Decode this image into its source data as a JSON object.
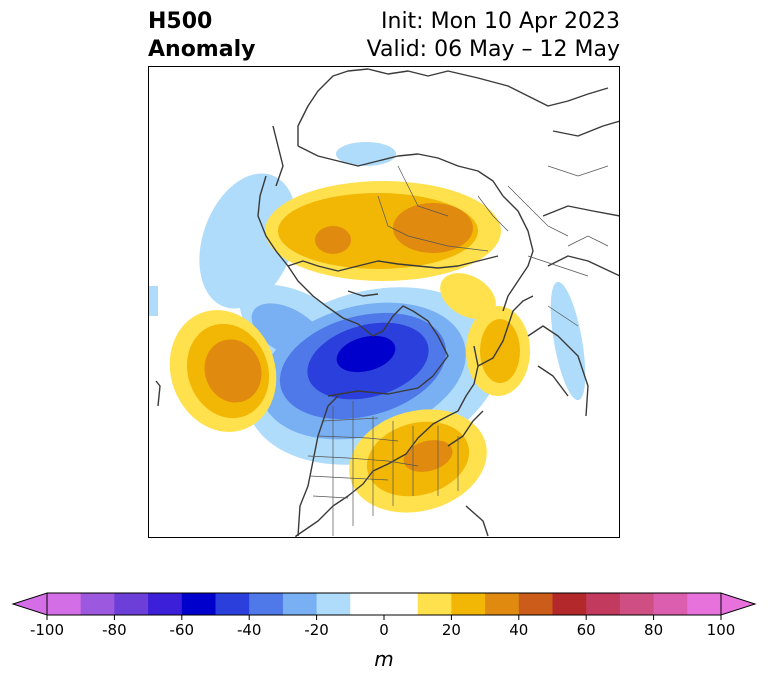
{
  "title": {
    "line1": "H500",
    "line2": "Anomaly"
  },
  "subtitle": {
    "init": "Init: Mon 10 Apr 2023",
    "valid": "Valid: 06 May – 12 May"
  },
  "colorbar": {
    "label": "m",
    "ticks": [
      "-100",
      "-80",
      "-60",
      "-40",
      "-20",
      "0",
      "20",
      "40",
      "60",
      "80",
      "100"
    ],
    "levels": [
      -100,
      -90,
      -80,
      -70,
      -60,
      -50,
      -40,
      -30,
      -20,
      -10,
      10,
      20,
      30,
      40,
      50,
      60,
      70,
      80,
      90,
      100
    ],
    "colors": [
      "#d46ee6",
      "#9d58e0",
      "#6c3fd9",
      "#3c1fd8",
      "#0000cc",
      "#2a3fdc",
      "#4f79e8",
      "#78b0f3",
      "#afdcfa",
      "#ffffff",
      "#ffe14d",
      "#f2b705",
      "#e08a0f",
      "#cc5c1a",
      "#b3282b",
      "#c23a5e",
      "#cf4f82",
      "#db5fae",
      "#e872db"
    ],
    "extend_low_color": "#d46ee6",
    "extend_high_color": "#e872db"
  },
  "map": {
    "projection": "polar-stereographic-north",
    "anomaly_centers": [
      {
        "sign": "positive",
        "peak": 45,
        "region": "eastern Pacific"
      },
      {
        "sign": "positive",
        "peak": 40,
        "region": "Siberia / Arctic Russia"
      },
      {
        "sign": "positive",
        "peak": 30,
        "region": "eastern United States"
      },
      {
        "sign": "positive",
        "peak": 30,
        "region": "northwestern Europe"
      },
      {
        "sign": "negative",
        "peak": -60,
        "region": "central Canada / Hudson Bay"
      }
    ]
  }
}
